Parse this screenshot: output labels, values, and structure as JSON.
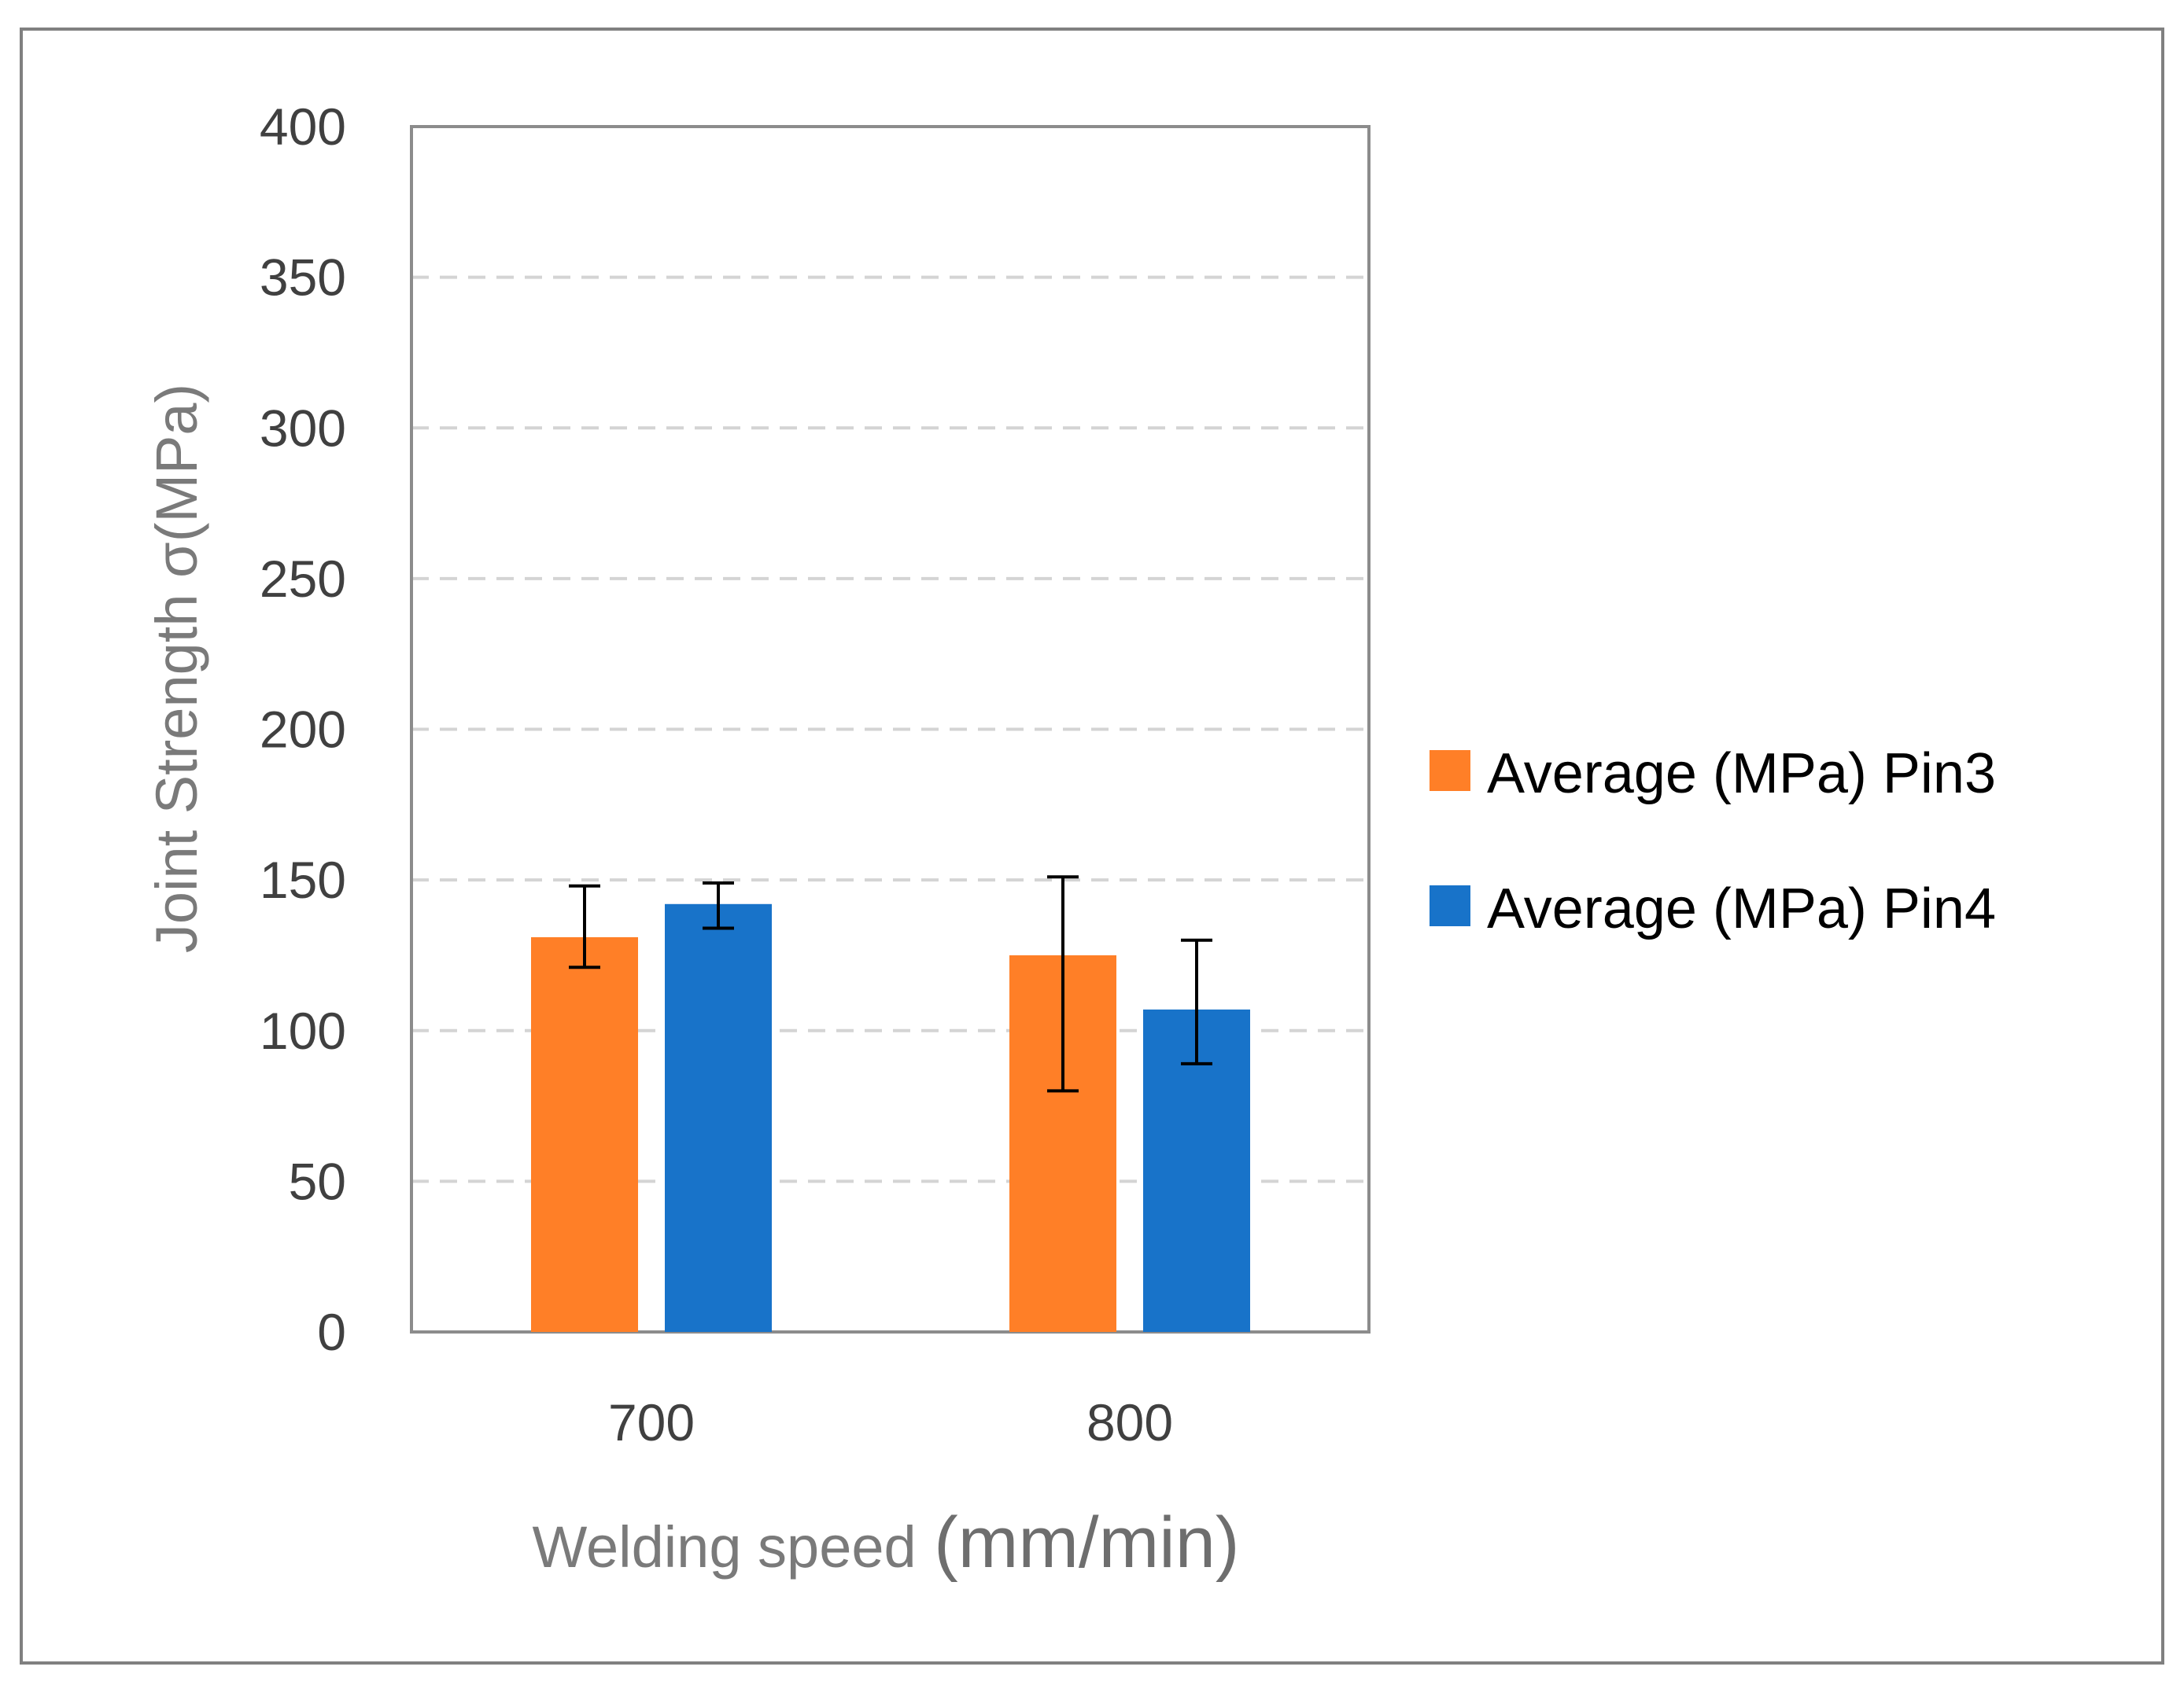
{
  "chart_data": {
    "type": "bar",
    "title": "",
    "xlabel": "Welding speed",
    "xlabel_unit": "(mm/min)",
    "ylabel": "Joint Strength σ(MPa)",
    "ylim": [
      0,
      400
    ],
    "yticks": [
      0,
      50,
      100,
      150,
      200,
      250,
      300,
      350,
      400
    ],
    "grid": "horizontal-dashed",
    "legend_position": "right",
    "categories": [
      "700",
      "800"
    ],
    "series": [
      {
        "name": "Average (MPa) Pin3",
        "color": "#FF7F27",
        "values": [
          131,
          125
        ],
        "error_low": [
          121,
          80
        ],
        "error_high": [
          148,
          151
        ]
      },
      {
        "name": "Average (MPa) Pin4",
        "color": "#1873C9",
        "values": [
          142,
          107
        ],
        "error_low": [
          134,
          89
        ],
        "error_high": [
          149,
          130
        ]
      }
    ],
    "colors": {
      "grid": "#d4d4d4",
      "plot_border": "#8c8c8c",
      "error_bar": "#000000",
      "frame": "#808080"
    }
  }
}
